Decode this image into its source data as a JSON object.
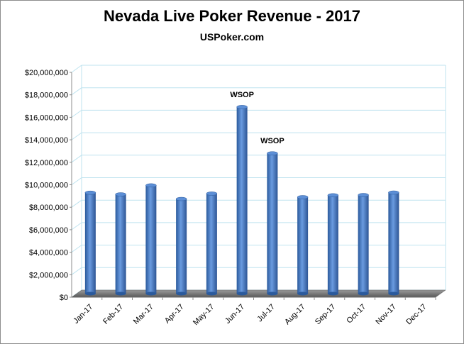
{
  "chart_data": {
    "type": "bar",
    "title": "Nevada Live Poker Revenue - 2017",
    "subtitle": "USPoker.com",
    "xlabel": "",
    "ylabel": "",
    "categories": [
      "Jan-17",
      "Feb-17",
      "Mar-17",
      "Apr-17",
      "May-17",
      "Jun-17",
      "Jul-17",
      "Aug-17",
      "Sep-17",
      "Oct-17",
      "Nov-17",
      "Dec-17"
    ],
    "values": [
      8980000,
      8830000,
      9630000,
      8420000,
      8900000,
      16600000,
      12480000,
      8580000,
      8750000,
      8770000,
      8990000,
      null
    ],
    "ylim": [
      0,
      20000000
    ],
    "yticks": [
      0,
      2000000,
      4000000,
      6000000,
      8000000,
      10000000,
      12000000,
      14000000,
      16000000,
      18000000,
      20000000
    ],
    "ytick_labels": [
      "$0",
      "$2,000,000",
      "$4,000,000",
      "$6,000,000",
      "$8,000,000",
      "$10,000,000",
      "$12,000,000",
      "$14,000,000",
      "$16,000,000",
      "$18,000,000",
      "$20,000,000"
    ],
    "annotations": [
      {
        "category": "Jun-17",
        "text": "WSOP"
      },
      {
        "category": "Jul-17",
        "text": "WSOP"
      }
    ],
    "grid": true,
    "legend": "none",
    "colors": {
      "bar": "#4a7cc4",
      "grid": "#bfe3ef",
      "floor": "#808080"
    }
  }
}
